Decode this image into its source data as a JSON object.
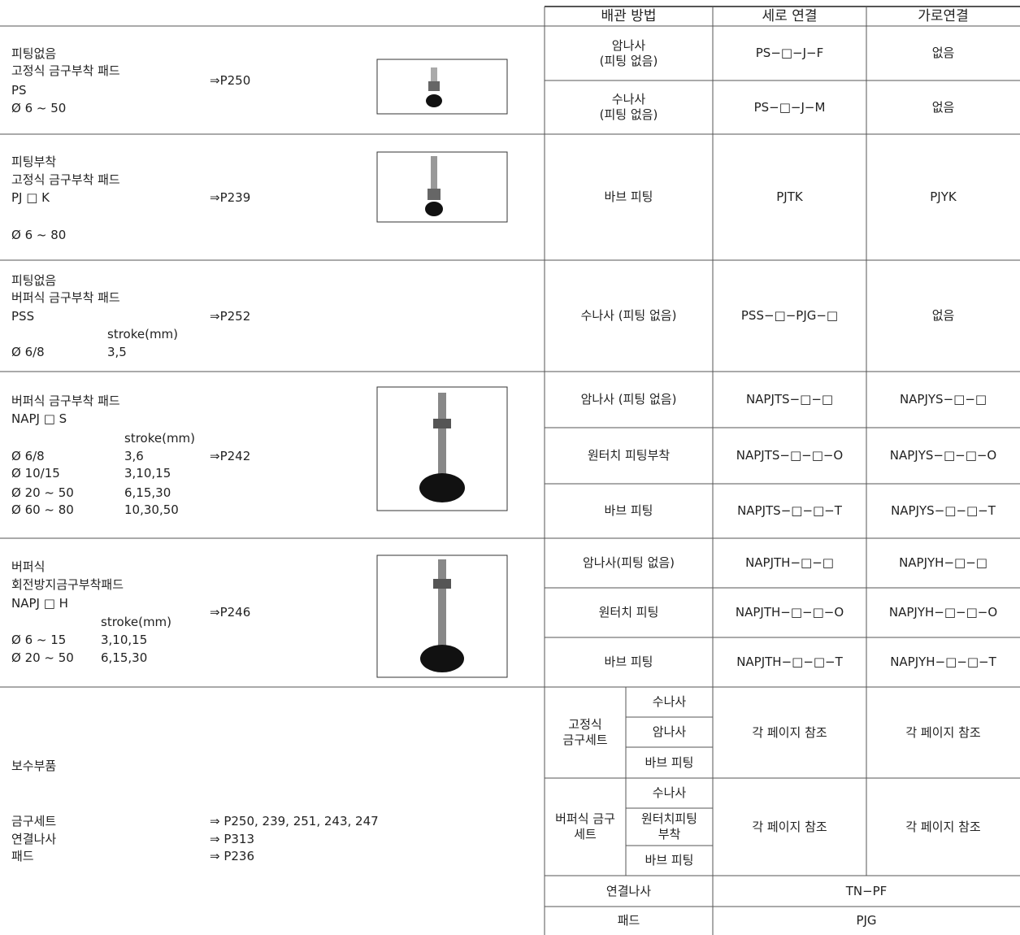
{
  "header": {
    "method": "배관 방법",
    "vertical": "세로 연결",
    "horizontal": "가로연결"
  },
  "sections": [
    {
      "name": "피팅없음",
      "title": "고정식 금구부착 패드",
      "code": "PS",
      "size": "Ø 6 ~ 50",
      "page": "⇒P250",
      "rows": [
        {
          "method": "암나사\n(피팅 없음)",
          "vertical": "PS−□−J−F",
          "horizontal": "없음"
        },
        {
          "method": "수나사\n(피팅 없음)",
          "vertical": "PS−□−J−M",
          "horizontal": "없음"
        }
      ]
    },
    {
      "name": "피팅부착",
      "title": "고정식 금구부착 패드",
      "code": "PJ □ K",
      "size": "Ø 6 ~ 80",
      "page": "⇒P239",
      "rows": [
        {
          "method": "바브 피팅",
          "vertical": "PJTK",
          "horizontal": "PJYK"
        }
      ]
    },
    {
      "name": "피팅없음",
      "title": "버퍼식 금구부착 패드",
      "code": "PSS",
      "stroke_header": "stroke(mm)",
      "strokes": [
        {
          "size": "Ø 6/8",
          "stroke": "3,5"
        }
      ],
      "page": "⇒P252",
      "rows": [
        {
          "method": "수나사 (피팅 없음)",
          "vertical": "PSS−□−PJG−□",
          "horizontal": "없음"
        }
      ]
    },
    {
      "title": "버퍼식 금구부착 패드",
      "code": "NAPJ □ S",
      "stroke_header": "stroke(mm)",
      "strokes": [
        {
          "size": "Ø 6/8",
          "stroke": "3,6"
        },
        {
          "size": "Ø 10/15",
          "stroke": "3,10,15"
        },
        {
          "size": "Ø 20 ~ 50",
          "stroke": "6,15,30"
        },
        {
          "size": "Ø 60 ~ 80",
          "stroke": "10,30,50"
        }
      ],
      "page": "⇒P242",
      "rows": [
        {
          "method": "암나사 (피팅 없음)",
          "vertical": "NAPJTS−□−□",
          "horizontal": "NAPJYS−□−□"
        },
        {
          "method": "원터치 피팅부착",
          "vertical": "NAPJTS−□−□−O",
          "horizontal": "NAPJYS−□−□−O"
        },
        {
          "method": "바브 피팅",
          "vertical": "NAPJTS−□−□−T",
          "horizontal": "NAPJYS−□−□−T"
        }
      ]
    },
    {
      "name": "버퍼식",
      "title": "회전방지금구부착패드",
      "code": "NAPJ □ H",
      "stroke_header": "stroke(mm)",
      "strokes": [
        {
          "size": "Ø 6 ~ 15",
          "stroke": "3,10,15"
        },
        {
          "size": "Ø 20 ~ 50",
          "stroke": "6,15,30"
        }
      ],
      "page": "⇒P246",
      "rows": [
        {
          "method": "암나사(피팅 없음)",
          "vertical": "NAPJTH−□−□",
          "horizontal": "NAPJYH−□−□"
        },
        {
          "method": "원터치 피팅",
          "vertical": "NAPJTH−□−□−O",
          "horizontal": "NAPJYH−□−□−O"
        },
        {
          "method": "바브 피팅",
          "vertical": "NAPJTH−□−□−T",
          "horizontal": "NAPJYH−□−□−T"
        }
      ]
    }
  ],
  "maintenance": {
    "title": "보수부품",
    "refs": [
      {
        "label": "금구세트",
        "page": "⇒ P250, 239, 251, 243, 247"
      },
      {
        "label": "연결나사",
        "page": "⇒ P313"
      },
      {
        "label": "패드",
        "page": "⇒ P236"
      }
    ],
    "groups": [
      {
        "name": "고정식\n금구세트",
        "items": [
          "수나사",
          "암나사",
          "바브 피팅"
        ],
        "vertical": "각 페이지 참조",
        "horizontal": "각 페이지 참조"
      },
      {
        "name": "버퍼식 금구\n세트",
        "items": [
          "수나사",
          "원터치피팅\n부착",
          "바브 피팅"
        ],
        "vertical": "각 페이지 참조",
        "horizontal": "각 페이지 참조"
      }
    ],
    "rows": [
      {
        "method": "연결나사",
        "value": "TN−PF"
      },
      {
        "method": "패드",
        "value": "PJG"
      }
    ]
  }
}
